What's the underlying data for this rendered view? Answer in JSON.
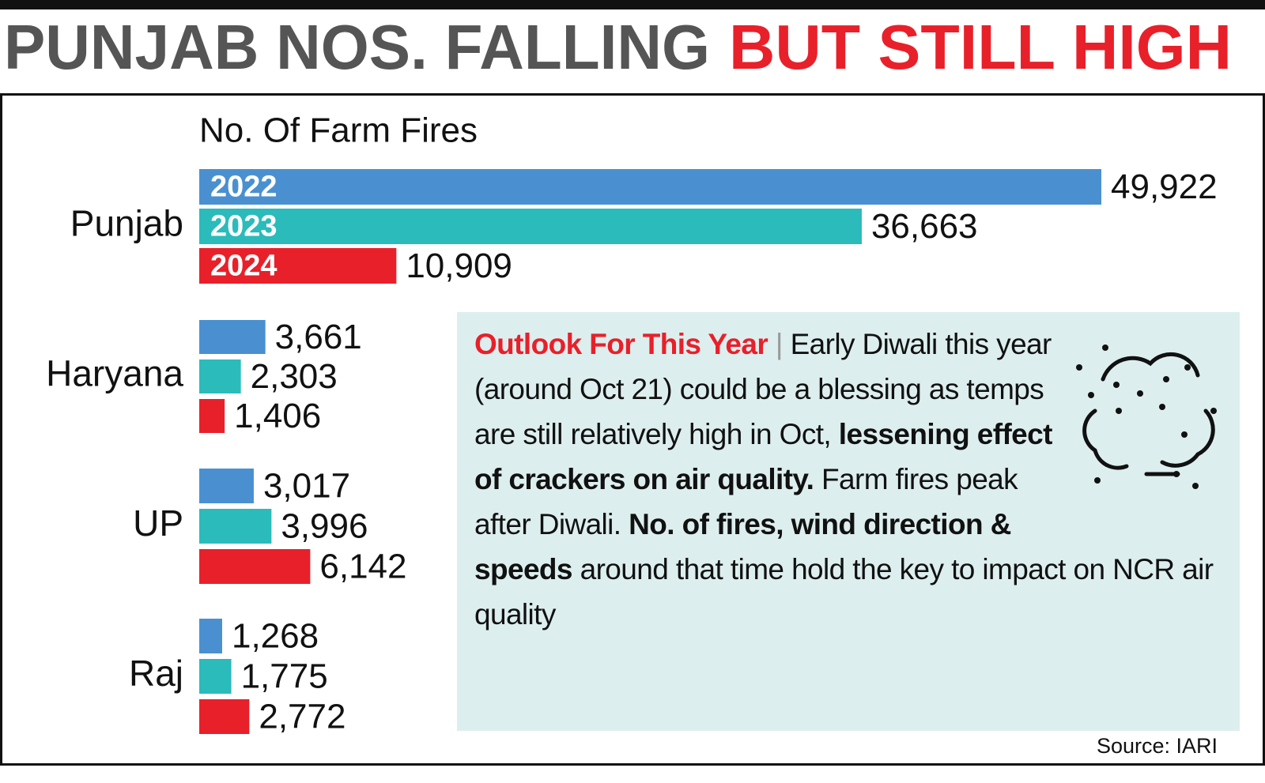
{
  "chart_data": {
    "type": "bar",
    "title": {
      "gray": "PUNJAB NOS. FALLING",
      "red": "BUT STILL HIGH"
    },
    "subtitle": "No. Of Farm Fires",
    "categories": [
      "Punjab",
      "Haryana",
      "UP",
      "Raj"
    ],
    "series": [
      {
        "name": "2022",
        "color": "#4a90d0",
        "values": [
          49922,
          3661,
          3017,
          1268
        ],
        "value_labels": [
          "49,922",
          "3,661",
          "3,017",
          "1,268"
        ]
      },
      {
        "name": "2023",
        "color": "#2bbbbb",
        "values": [
          36663,
          2303,
          3996,
          1775
        ],
        "value_labels": [
          "36,663",
          "2,303",
          "3,996",
          "1,775"
        ]
      },
      {
        "name": "2024",
        "color": "#e8202a",
        "values": [
          10909,
          1406,
          6142,
          2772
        ],
        "value_labels": [
          "10,909",
          "1,406",
          "6,142",
          "2,772"
        ]
      }
    ],
    "annotation": {
      "heading": "Outlook For This Year",
      "separator": "|",
      "segments": [
        {
          "text": "Early Diwali this year (around Oct 21) could be a blessing as temps are still relatively high in Oct,",
          "bold": false
        },
        {
          "text": "lessening effect of crackers on air quality.",
          "bold": true
        },
        {
          "text": "Farm fires peak after Diwali.",
          "bold": false
        },
        {
          "text": "No. of fires, wind direction & speeds",
          "bold": true
        },
        {
          "text": "around that time hold the key to impact on NCR air quality",
          "bold": false
        }
      ]
    },
    "source": "Source: IARI"
  }
}
